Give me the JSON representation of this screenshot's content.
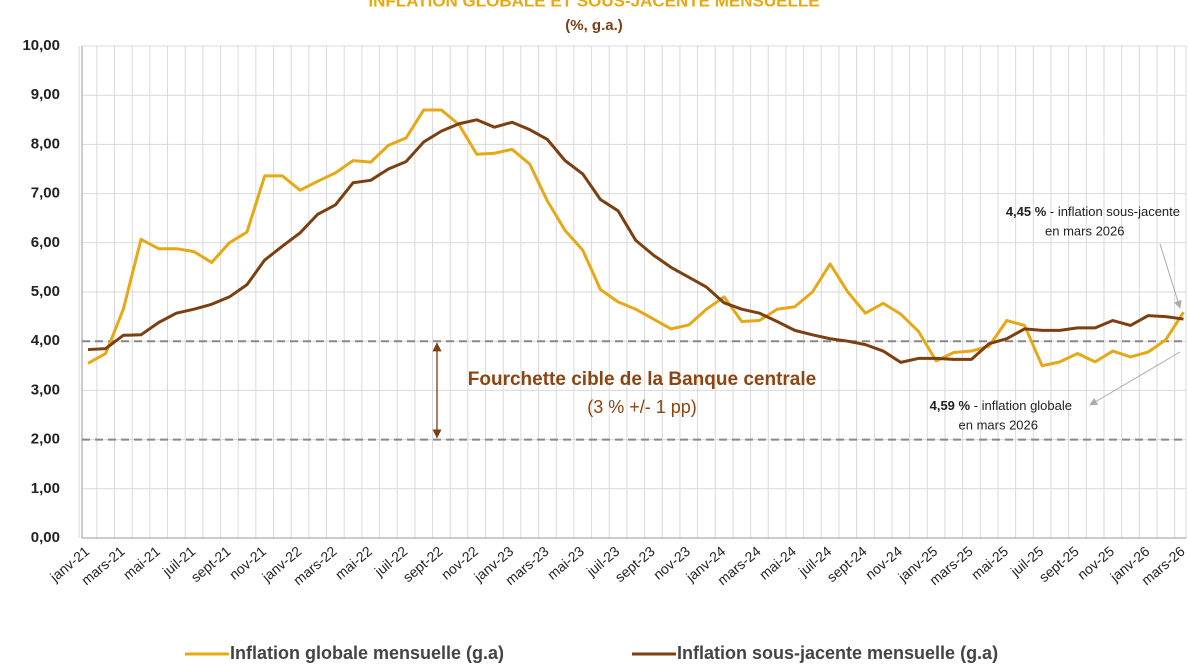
{
  "chart_data": {
    "type": "line",
    "title": "INFLATION GLOBALE ET SOUS-JACENTE MENSUELLE",
    "subtitle": "(%, g.a.)",
    "categories": [
      "janv-21",
      null,
      "mars-21",
      null,
      "mai-21",
      null,
      "juil-21",
      null,
      "sept-21",
      null,
      "nov-21",
      null,
      "janv-22",
      null,
      "mars-22",
      null,
      "mai-22",
      null,
      "juil-22",
      null,
      "sept-22",
      null,
      "nov-22",
      null,
      "janv-23",
      null,
      "mars-23",
      null,
      "mai-23",
      null,
      "juil-23",
      null,
      "sept-23",
      null,
      "nov-23",
      null,
      "janv-24",
      null,
      "mars-24",
      null,
      "mai-24",
      null,
      "juil-24",
      null,
      "sept-24",
      null,
      "nov-24",
      null,
      "janv-25",
      null,
      "mars-25",
      null,
      "mai-25",
      null,
      "juil-25",
      null,
      "sept-25",
      null,
      "nov-25",
      null,
      "janv-26",
      null,
      "mars-26"
    ],
    "series": [
      {
        "name": "Inflation globale mensuelle (g.a)",
        "color": "#e6a817",
        "values": [
          3.55,
          3.75,
          4.65,
          6.07,
          5.88,
          5.88,
          5.82,
          5.6,
          6.0,
          6.22,
          7.36,
          7.36,
          7.07,
          7.25,
          7.42,
          7.67,
          7.64,
          7.98,
          8.13,
          8.7,
          8.7,
          8.4,
          7.8,
          7.82,
          7.9,
          7.6,
          6.85,
          6.25,
          5.85,
          5.05,
          4.8,
          4.65,
          4.45,
          4.25,
          4.33,
          4.65,
          4.9,
          4.4,
          4.42,
          4.65,
          4.7,
          5.0,
          5.57,
          5.0,
          4.57,
          4.77,
          4.55,
          4.2,
          3.6,
          3.77,
          3.8,
          3.9,
          4.42,
          4.32,
          3.5,
          3.58,
          3.75,
          3.58,
          3.8,
          3.68,
          3.78,
          4.03,
          4.59
        ]
      },
      {
        "name": "Inflation sous-jacente mensuelle (g.a)",
        "color": "#7b3f12",
        "values": [
          3.83,
          3.85,
          4.12,
          4.13,
          4.38,
          4.57,
          4.65,
          4.75,
          4.9,
          5.15,
          5.65,
          5.93,
          6.2,
          6.58,
          6.77,
          7.22,
          7.27,
          7.5,
          7.65,
          8.05,
          8.27,
          8.42,
          8.5,
          8.35,
          8.45,
          8.3,
          8.1,
          7.67,
          7.4,
          6.88,
          6.65,
          6.05,
          5.75,
          5.5,
          5.3,
          5.1,
          4.78,
          4.65,
          4.57,
          4.4,
          4.22,
          4.13,
          4.05,
          4.0,
          3.93,
          3.8,
          3.57,
          3.65,
          3.65,
          3.63,
          3.63,
          3.95,
          4.05,
          4.25,
          4.22,
          4.22,
          4.27,
          4.27,
          4.42,
          4.32,
          4.52,
          4.5,
          4.45
        ]
      }
    ],
    "ylim": [
      0,
      10
    ],
    "yticks": [
      {
        "value": 0,
        "label": "0,00"
      },
      {
        "value": 1,
        "label": "1,00"
      },
      {
        "value": 2,
        "label": "2,00"
      },
      {
        "value": 3,
        "label": "3,00"
      },
      {
        "value": 4,
        "label": "4,00"
      },
      {
        "value": 5,
        "label": "5,00"
      },
      {
        "value": 6,
        "label": "6,00"
      },
      {
        "value": 7,
        "label": "7,00"
      },
      {
        "value": 8,
        "label": "8,00"
      },
      {
        "value": 9,
        "label": "9,00"
      },
      {
        "value": 10,
        "label": "10,00"
      }
    ],
    "grid": true,
    "target_band": [
      2,
      4
    ],
    "band_title": "Fourchette cible de la Banque centrale",
    "band_subtitle": "(3 % +/- 1 pp)",
    "annotations": [
      {
        "bold": "4,45 %",
        "text": " - inflation sous-jacente",
        "line2": "en mars 2026"
      },
      {
        "bold": "4,59 %",
        "text": " - inflation globale",
        "line2": "en mars 2026"
      }
    ],
    "legend": "bottom"
  }
}
